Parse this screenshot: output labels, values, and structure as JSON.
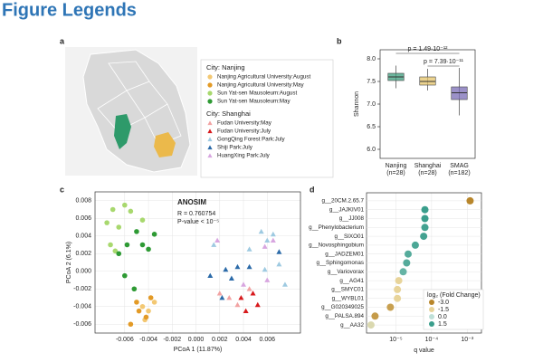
{
  "title": "Figure Legends",
  "panels": [
    "a",
    "b",
    "c",
    "d"
  ],
  "chart_data": [
    {
      "type": "box",
      "ylabel": "Shannon",
      "categories": [
        "Nanjing",
        "Shanghai",
        "SMAG"
      ],
      "category_counts": [
        "(n=28)",
        "(n=28)",
        "(n=182)"
      ],
      "colors": [
        "#3c9e7e",
        "#e5c46a",
        "#7a6cb6"
      ],
      "boxes": [
        {
          "min": 7.35,
          "q1": 7.52,
          "median": 7.6,
          "q3": 7.68,
          "max": 7.85
        },
        {
          "min": 7.3,
          "q1": 7.42,
          "median": 7.5,
          "q3": 7.6,
          "max": 7.78
        },
        {
          "min": 6.75,
          "q1": 7.1,
          "median": 7.25,
          "q3": 7.38,
          "max": 7.8
        }
      ],
      "annotations": [
        "p = 1.49·10⁻¹²",
        "p = 7.39·10⁻¹¹"
      ],
      "ylim": [
        5.8,
        8.2
      ],
      "yticks": [
        {
          "value": 6,
          "label": "6.0"
        },
        6.5,
        {
          "value": 7,
          "label": "7.0"
        },
        7.5,
        {
          "value": 8,
          "label": "8.0"
        }
      ]
    },
    {
      "type": "scatter",
      "xlabel": "PCoA 1 (11.87%)",
      "ylabel": "PCoA 2 (6.1%)",
      "annotation": {
        "title": "ANOSIM",
        "lines": [
          "R = 0.760754",
          "P-value < 10⁻⁵"
        ]
      },
      "legend_groups": [
        {
          "title": "City: Nanjing",
          "series": [
            0,
            1,
            2,
            3
          ]
        },
        {
          "title": "City: Shanghai",
          "series": [
            4,
            5,
            6,
            7,
            8
          ]
        }
      ],
      "series": [
        {
          "name": "Nanjing Agricultural University:August",
          "color": "#f3c873",
          "marker": "circle",
          "x": [
            -0.0045,
            -0.004,
            -0.0035,
            -0.0043
          ],
          "y": [
            -0.004,
            -0.0045,
            -0.0035,
            -0.0055
          ]
        },
        {
          "name": "Nanjing Agricultural University:May",
          "color": "#e39a26",
          "marker": "circle",
          "x": [
            -0.005,
            -0.0042,
            -0.0038,
            -0.0055,
            -0.0048
          ],
          "y": [
            -0.0035,
            -0.0052,
            -0.003,
            -0.006,
            -0.0045
          ]
        },
        {
          "name": "Sun Yat-sen Mausoleum:August",
          "color": "#a8d86e",
          "marker": "circle",
          "x": [
            -0.0075,
            -0.007,
            -0.0065,
            -0.006,
            -0.0055,
            -0.0072,
            -0.0068,
            -0.0045
          ],
          "y": [
            0.0055,
            0.007,
            0.005,
            0.0075,
            0.0068,
            0.003,
            0.0023,
            0.0058
          ]
        },
        {
          "name": "Sun Yat-sen Mausoleum:May",
          "color": "#2e9a34",
          "marker": "circle",
          "x": [
            -0.0065,
            -0.0058,
            -0.005,
            -0.0045,
            -0.004,
            -0.006,
            -0.0052,
            -0.0035
          ],
          "y": [
            0.002,
            0.003,
            0.0045,
            0.003,
            0.0025,
            -0.0005,
            -0.002,
            0.0042
          ]
        },
        {
          "name": "Fudan University:May",
          "color": "#f2a3a3",
          "marker": "triangle",
          "x": [
            0.002,
            0.0028,
            0.0035,
            0.0045
          ],
          "y": [
            -0.0025,
            -0.003,
            -0.0038,
            -0.002
          ]
        },
        {
          "name": "Fudan University:July",
          "color": "#d7191c",
          "marker": "triangle",
          "x": [
            0.0038,
            0.0042,
            0.0048,
            0.0052
          ],
          "y": [
            -0.003,
            -0.0045,
            -0.0025,
            -0.0038
          ]
        },
        {
          "name": "GongQing Forest Park:July",
          "color": "#9ecae1",
          "marker": "triangle",
          "x": [
            0.0015,
            0.0045,
            0.0055,
            0.006,
            0.0065,
            0.007,
            0.0058,
            0.0075
          ],
          "y": [
            0.003,
            0.0025,
            0.0045,
            0.0035,
            0.0042,
            0.0008,
            0.0002,
            -0.0015
          ]
        },
        {
          "name": "Shiji Park:July",
          "color": "#2b6aa8",
          "marker": "triangle",
          "x": [
            0.0012,
            0.0025,
            0.003,
            0.0035,
            0.0045,
            0.007,
            0.0022
          ],
          "y": [
            -0.0005,
            0.0002,
            -0.0008,
            0.0005,
            0.0005,
            0.0022,
            -0.003
          ]
        },
        {
          "name": "HuangXing Park:July",
          "color": "#d8a6e0",
          "marker": "triangle",
          "x": [
            0.0018,
            0.004,
            0.0058,
            0.006,
            0.0065
          ],
          "y": [
            0.0035,
            -0.0015,
            0.0028,
            -0.001,
            0.0035
          ]
        }
      ],
      "xlim": [
        -0.0085,
        0.0088
      ],
      "xticks": [
        -0.006,
        -0.004,
        -0.002,
        {
          "value": 0,
          "label": "0.000"
        },
        0.002,
        0.004,
        0.006
      ],
      "ylim": [
        -0.007,
        0.009
      ],
      "yticks": [
        -0.006,
        -0.004,
        -0.002,
        {
          "value": 0,
          "label": "0.000"
        },
        0.002,
        0.004,
        0.006,
        0.008
      ]
    },
    {
      "type": "dot",
      "xlabel": "q value",
      "log_x": true,
      "categories": [
        "g__20CM.2.65.7",
        "g__JAJKIV01",
        "g__JJ008",
        "g__Phenylobacterium",
        "g__SIXO01",
        "g__Novosphingobium",
        "g__JADZEM01",
        "g__Sphingomonas",
        "g__Variovorax",
        "g__AG41",
        "g__SMYC01",
        "g__WYBL01",
        "g__G020349025",
        "g__PALSA.894",
        "g__AA32"
      ],
      "values": [
        0.0012,
        6.5e-05,
        6.5e-05,
        6.5e-05,
        6e-05,
        3.5e-05,
        2.2e-05,
        2e-05,
        1.6e-05,
        1.2e-05,
        1.1e-05,
        1.1e-05,
        7e-06,
        2.6e-06,
        2e-06
      ],
      "fold_change": [
        -3.0,
        1.5,
        1.5,
        1.4,
        1.4,
        1.3,
        1.2,
        1.2,
        1.0,
        -1.5,
        -1.5,
        -1.5,
        -2.5,
        -2.6,
        -1.0
      ],
      "color_legend": {
        "title": "log₂ (Fold Change)",
        "ticks": [
          {
            "value": -3,
            "label": "-3.0"
          },
          -1.5,
          {
            "value": 0,
            "label": "0.0"
          },
          1.5
        ],
        "colors": [
          "#b8862b",
          "#e8d49a",
          "#bfe0d8",
          "#3a9e8c"
        ]
      },
      "xlim": [
        1.5e-06,
        0.0025
      ],
      "xticks": [
        {
          "value": 1e-05,
          "label": "10⁻⁵"
        },
        {
          "value": 0.0001,
          "label": "10⁻⁴"
        },
        {
          "value": 0.001,
          "label": "10⁻³"
        }
      ]
    }
  ]
}
